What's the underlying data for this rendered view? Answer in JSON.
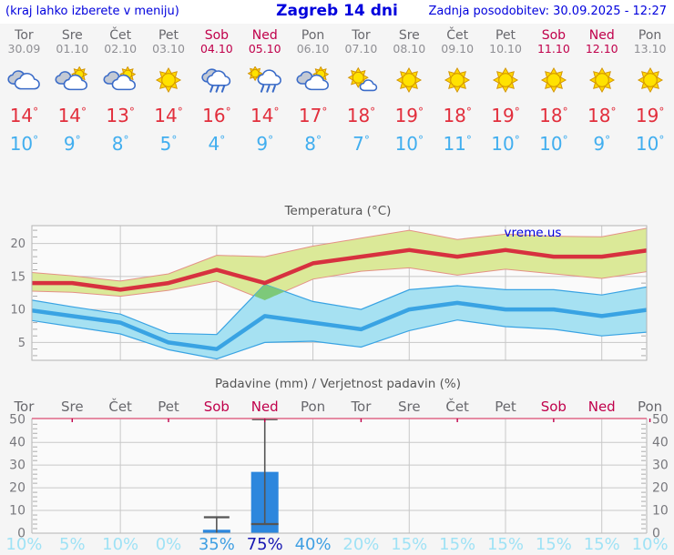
{
  "header": {
    "hint": "(kraj lahko izberete v meniju)",
    "title": "Zagreb 14 dni",
    "updated": "Zadnja posodobitev: 30.09.2025 - 12:27"
  },
  "units": {
    "degree": "°"
  },
  "colors": {
    "accent_blue": "#0000dd",
    "weekend": "#c0004b",
    "weekday": "#68686d",
    "date_text": "#8f8f94",
    "tmax_text": "#e22e3c",
    "tmin_text": "#41aeef",
    "max_line": "#d7313f",
    "max_band": "#dbe998",
    "max_band_edge": "#e49186",
    "min_line": "#39a3e3",
    "min_band": "#a6e1f2",
    "overlap": "#7dc97a",
    "grid": "#c8c8c8",
    "frame": "#b4b4b4",
    "tick": "#999999",
    "tick_text": "#78787d",
    "title_text": "#555555",
    "plot_bg": "#fafafa",
    "bar": "#2d87dd",
    "whisker": "#555555",
    "precip_top": "#e06888",
    "prob_low": "#9fe2f5",
    "prob_mid": "#3f9fe2",
    "prob_high": "#1717b2",
    "watermark": "#0000dd"
  },
  "forecast": {
    "days": [
      {
        "name": "Tor",
        "date": "30.09",
        "weekend": false,
        "icon": "cloudy",
        "tmax": 14,
        "tmin": 10
      },
      {
        "name": "Sre",
        "date": "01.10",
        "weekend": false,
        "icon": "sun-cloud",
        "tmax": 14,
        "tmin": 9
      },
      {
        "name": "Čet",
        "date": "02.10",
        "weekend": false,
        "icon": "sun-cloud",
        "tmax": 13,
        "tmin": 8
      },
      {
        "name": "Pet",
        "date": "03.10",
        "weekend": false,
        "icon": "sunny",
        "tmax": 14,
        "tmin": 5
      },
      {
        "name": "Sob",
        "date": "04.10",
        "weekend": true,
        "icon": "rain",
        "tmax": 16,
        "tmin": 4
      },
      {
        "name": "Ned",
        "date": "05.10",
        "weekend": true,
        "icon": "sun-rain",
        "tmax": 14,
        "tmin": 9
      },
      {
        "name": "Pon",
        "date": "06.10",
        "weekend": false,
        "icon": "sun-cloud",
        "tmax": 17,
        "tmin": 8
      },
      {
        "name": "Tor",
        "date": "07.10",
        "weekend": false,
        "icon": "mostly-sunny",
        "tmax": 18,
        "tmin": 7
      },
      {
        "name": "Sre",
        "date": "08.10",
        "weekend": false,
        "icon": "sunny",
        "tmax": 19,
        "tmin": 10
      },
      {
        "name": "Čet",
        "date": "09.10",
        "weekend": false,
        "icon": "sunny",
        "tmax": 18,
        "tmin": 11
      },
      {
        "name": "Pet",
        "date": "10.10",
        "weekend": false,
        "icon": "sunny",
        "tmax": 19,
        "tmin": 10
      },
      {
        "name": "Sob",
        "date": "11.10",
        "weekend": true,
        "icon": "sunny",
        "tmax": 18,
        "tmin": 10
      },
      {
        "name": "Ned",
        "date": "12.10",
        "weekend": true,
        "icon": "sunny",
        "tmax": 18,
        "tmin": 9
      },
      {
        "name": "Pon",
        "date": "13.10",
        "weekend": false,
        "icon": "sunny",
        "tmax": 19,
        "tmin": 10
      }
    ]
  },
  "chart_data": [
    {
      "type": "band-line",
      "title": "Temperatura (°C)",
      "watermark": "vreme.us",
      "ylim": [
        2.3,
        22.7
      ],
      "yticks": [
        5,
        10,
        15,
        20
      ],
      "grid": true,
      "legend_position": "none",
      "x_gridline_days": [
        2,
        4,
        6,
        8,
        10,
        12
      ],
      "series": [
        {
          "name": "max temperature (°C)",
          "values": [
            14,
            14,
            13,
            14,
            16,
            14,
            17,
            18,
            19,
            18,
            19,
            18,
            18,
            19
          ],
          "upper": [
            15.7,
            15.1,
            14.3,
            15.4,
            18.2,
            18.0,
            19.6,
            20.8,
            22.0,
            20.6,
            21.4,
            21.1,
            21.0,
            22.4
          ],
          "lower": [
            12.8,
            12.6,
            12.0,
            12.9,
            14.3,
            11.4,
            14.6,
            15.8,
            16.3,
            15.2,
            16.1,
            15.4,
            14.7,
            15.8
          ]
        },
        {
          "name": "min temperature (°C)",
          "values": [
            10,
            9,
            8,
            5,
            4,
            9,
            8,
            7,
            10,
            11,
            10,
            10,
            9,
            10
          ],
          "upper": [
            11.6,
            10.4,
            9.3,
            6.4,
            6.2,
            13.8,
            11.2,
            10.0,
            13.0,
            13.6,
            13.0,
            13.0,
            12.2,
            13.5
          ],
          "lower": [
            8.5,
            7.4,
            6.3,
            3.9,
            2.5,
            5.0,
            5.2,
            4.3,
            6.8,
            8.4,
            7.4,
            7.0,
            6.0,
            6.6
          ]
        }
      ]
    },
    {
      "type": "bar",
      "title": "Padavine (mm) / Verjetnost padavin (%)",
      "categories": [
        "Tor",
        "Sre",
        "Čet",
        "Pet",
        "Sob",
        "Ned",
        "Pon",
        "Tor",
        "Sre",
        "Čet",
        "Pet",
        "Sob",
        "Ned",
        "Pon"
      ],
      "weekend_flags": [
        false,
        false,
        false,
        false,
        true,
        true,
        false,
        false,
        false,
        false,
        false,
        true,
        true,
        false
      ],
      "values_mm": [
        0,
        0,
        0,
        0,
        1.5,
        27,
        0,
        0,
        0,
        0,
        0,
        0,
        0,
        0
      ],
      "range_min": [
        null,
        null,
        null,
        null,
        0,
        4,
        null,
        null,
        null,
        null,
        null,
        null,
        null,
        null
      ],
      "range_max": [
        null,
        null,
        null,
        null,
        7,
        50.2,
        null,
        null,
        null,
        null,
        null,
        null,
        null,
        null
      ],
      "probabilities": [
        "10%",
        "5%",
        "10%",
        "0%",
        "35%",
        "75%",
        "40%",
        "20%",
        "15%",
        "15%",
        "15%",
        "15%",
        "15%",
        "10%"
      ],
      "prob_levels": [
        "low",
        "low",
        "low",
        "low",
        "mid",
        "high",
        "mid",
        "low",
        "low",
        "low",
        "low",
        "low",
        "low",
        "low"
      ],
      "ylim": [
        0,
        50.5
      ],
      "yticks": [
        0,
        10,
        20,
        30,
        40,
        50
      ],
      "x_gridline_days": [
        2,
        4,
        6,
        8,
        10,
        12
      ]
    }
  ]
}
